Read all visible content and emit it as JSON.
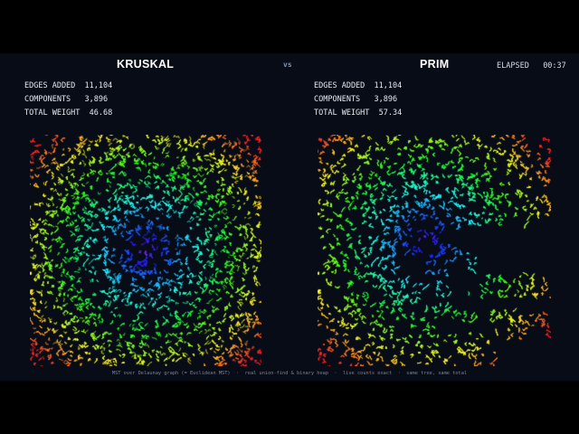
{
  "header": {
    "left_title": "KRUSKAL",
    "vs": "vs",
    "right_title": "PRIM",
    "elapsed_label": "ELAPSED",
    "elapsed_value": "00:37"
  },
  "kruskal": {
    "edges_label": "EDGES ADDED",
    "edges_value": "11,104",
    "components_label": "COMPONENTS",
    "components_value": "3,896",
    "weight_label": "TOTAL WEIGHT",
    "weight_value": "46.68"
  },
  "prim": {
    "edges_label": "EDGES ADDED",
    "edges_value": "11,104",
    "components_label": "COMPONENTS",
    "components_value": "3,896",
    "weight_label": "TOTAL WEIGHT",
    "weight_value": "57.34"
  },
  "footer": "MST over Delaunay graph (= Euclidean MST)  ·  real union-find & binary heap  ·  live counts exact  ·  same tree, same total",
  "colors": {
    "background": "#070c17",
    "title": "#ffffff",
    "vs": "#7f93bd",
    "footer": "#7d8596"
  }
}
